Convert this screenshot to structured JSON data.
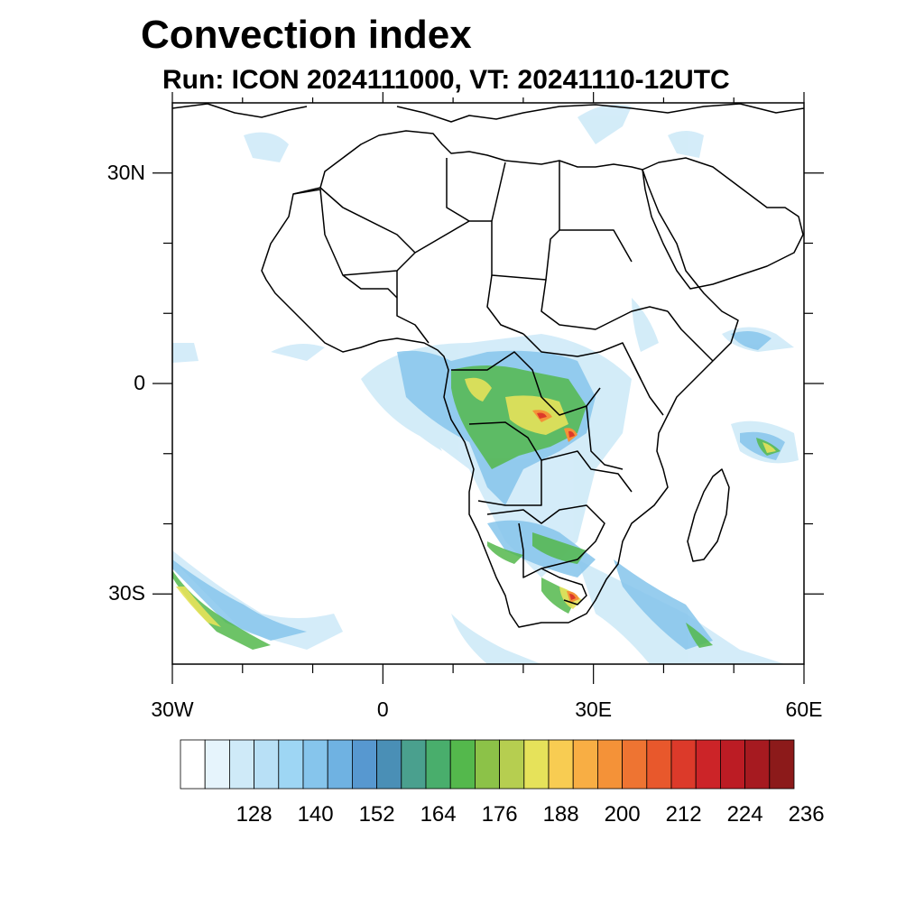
{
  "title": "Convection index",
  "subtitle": "Run: ICON 2024111000,  VT: 20241110-12UTC",
  "map": {
    "lon_range": [
      -30,
      60
    ],
    "lat_range": [
      -40,
      40
    ],
    "lat_labels": [
      {
        "text": "30N",
        "lat": 30
      },
      {
        "text": "0",
        "lat": 0
      },
      {
        "text": "30S",
        "lat": -30
      }
    ],
    "lon_labels": [
      {
        "text": "30W",
        "lon": -30
      },
      {
        "text": "0",
        "lon": 0
      },
      {
        "text": "30E",
        "lon": 30
      },
      {
        "text": "60E",
        "lon": 60
      }
    ],
    "major_ticks_lon": [
      -30,
      0,
      30,
      60
    ],
    "minor_ticks_lon": [
      -20,
      -10,
      10,
      20,
      40,
      50
    ],
    "major_ticks_lat": [
      -30,
      0,
      30
    ],
    "minor_ticks_lat": [
      -20,
      -10,
      10,
      20
    ]
  },
  "colorbar": {
    "labels": [
      "128",
      "140",
      "152",
      "164",
      "176",
      "188",
      "200",
      "212",
      "224",
      "236"
    ],
    "colors": [
      "#ffffff",
      "#e6f4fc",
      "#cfeaf8",
      "#b8e0f6",
      "#9ed6f4",
      "#86c5ec",
      "#6fb2e2",
      "#5798d0",
      "#4a8fb6",
      "#4aa08e",
      "#49ae6c",
      "#54b84c",
      "#8cc248",
      "#b6ce50",
      "#e6e25a",
      "#f8cc52",
      "#f8ae44",
      "#f49238",
      "#ee7432",
      "#e8582c",
      "#dc3a2a",
      "#cc2428",
      "#bc1c24",
      "#a61a20",
      "#8c1a1a"
    ]
  }
}
